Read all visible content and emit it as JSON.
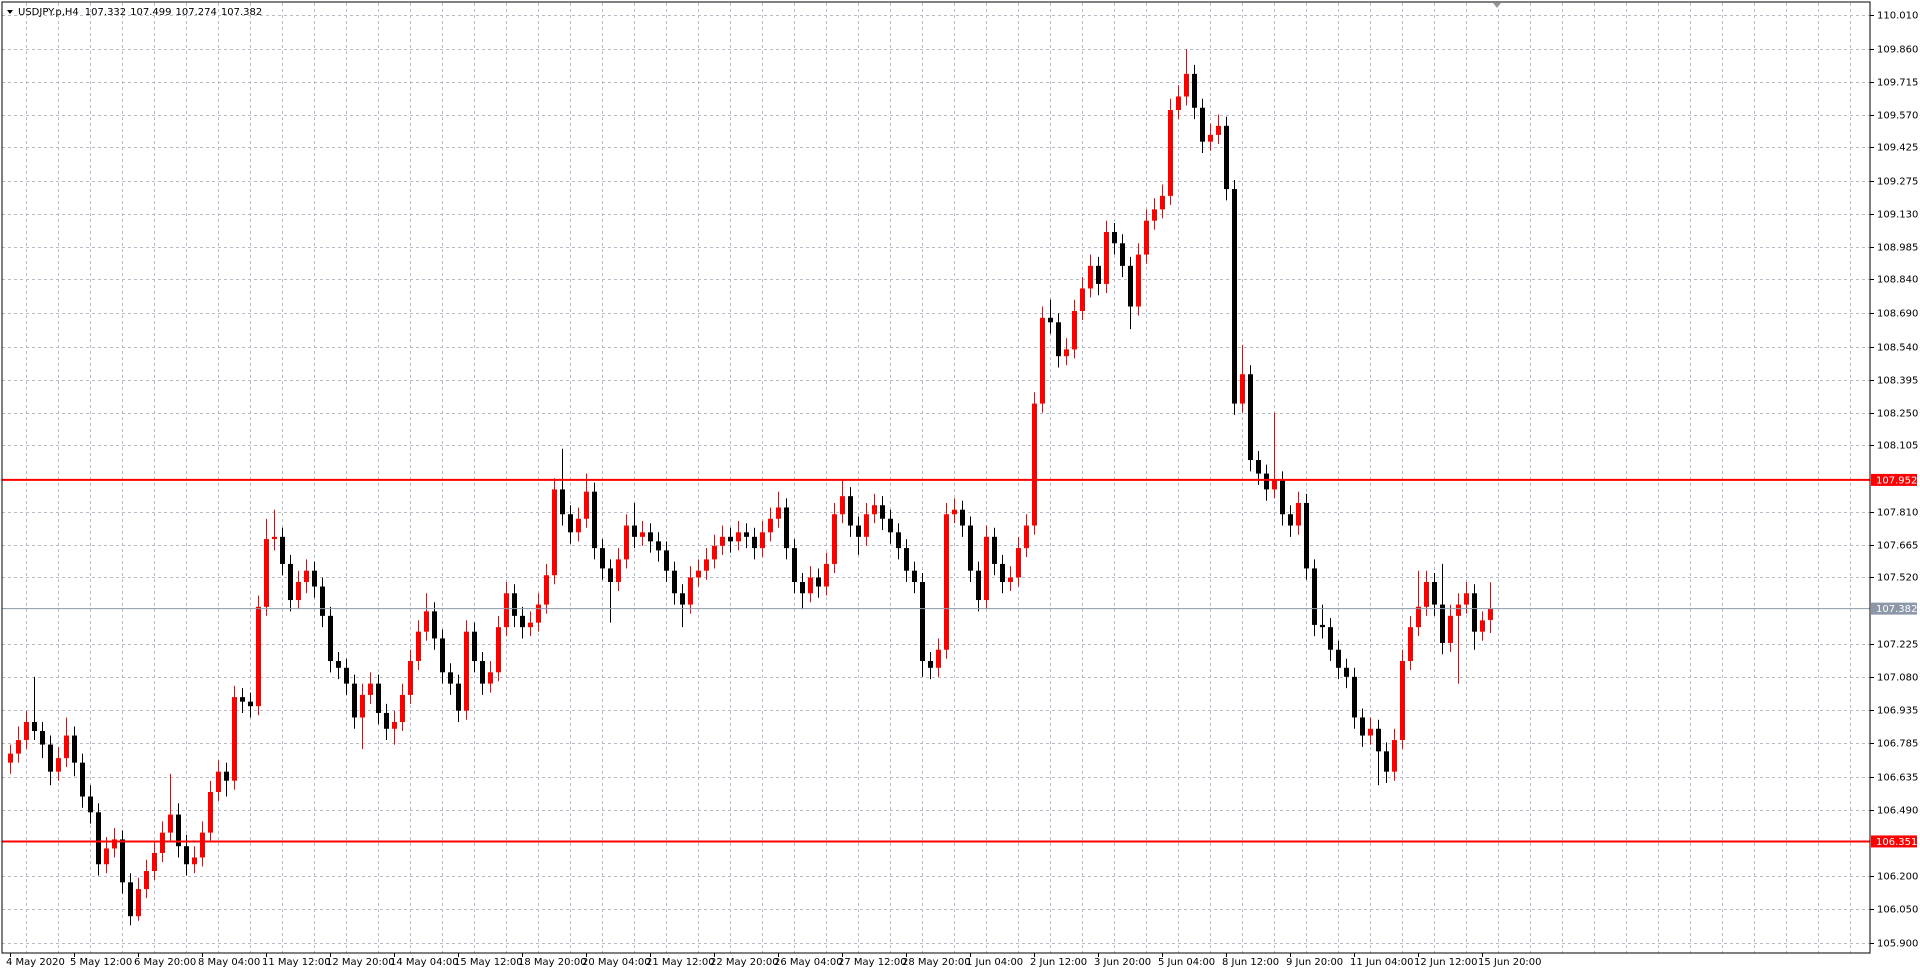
{
  "chart_data": {
    "type": "candlestick",
    "title": "USDJPY.p,H4",
    "header_values": [
      107.332,
      107.499,
      107.274,
      107.382
    ],
    "up_color": "#ff0000",
    "down_color": "#000000",
    "grid": true,
    "ylim": [
      105.857,
      110.064
    ],
    "yticks": [
      {
        "value": 110.01,
        "label": "110.010"
      },
      {
        "value": 109.86,
        "label": "109.860"
      },
      109.715,
      {
        "value": 109.57,
        "label": "109.570"
      },
      109.425,
      109.275,
      {
        "value": 109.13,
        "label": "109.130"
      },
      108.985,
      {
        "value": 108.84,
        "label": "108.840"
      },
      {
        "value": 108.69,
        "label": "108.690"
      },
      {
        "value": 108.54,
        "label": "108.540"
      },
      108.395,
      {
        "value": 108.25,
        "label": "108.250"
      },
      108.105,
      {
        "value": 107.81,
        "label": "107.810"
      },
      107.665,
      {
        "value": 107.52,
        "label": "107.520"
      },
      107.225,
      {
        "value": 107.08,
        "label": "107.080"
      },
      106.935,
      106.785,
      106.635,
      {
        "value": 106.49,
        "label": "106.490"
      },
      {
        "value": 106.2,
        "label": "106.200"
      },
      {
        "value": 106.05,
        "label": "106.050"
      },
      {
        "value": 105.9,
        "label": "105.900"
      }
    ],
    "hlines": [
      {
        "value": 107.952,
        "color": "#ff0000"
      },
      {
        "value": 106.351,
        "color": "#ff0000"
      }
    ],
    "bid": {
      "value": 107.382,
      "color": "#8c98aa"
    },
    "categories": [
      "4 May 2020",
      null,
      null,
      null,
      null,
      null,
      null,
      null,
      "5 May 12:00",
      null,
      null,
      null,
      null,
      null,
      null,
      null,
      "6 May 20:00",
      null,
      null,
      null,
      null,
      null,
      null,
      null,
      "8 May 04:00",
      null,
      null,
      null,
      null,
      null,
      null,
      null,
      "11 May 12:00",
      null,
      null,
      null,
      null,
      null,
      null,
      null,
      "12 May 20:00",
      null,
      null,
      null,
      null,
      null,
      null,
      null,
      "14 May 04:00",
      null,
      null,
      null,
      null,
      null,
      null,
      null,
      "15 May 12:00",
      null,
      null,
      null,
      null,
      null,
      null,
      null,
      "18 May 20:00",
      null,
      null,
      null,
      null,
      null,
      null,
      null,
      "20 May 04:00",
      null,
      null,
      null,
      null,
      null,
      null,
      null,
      "21 May 12:00",
      null,
      null,
      null,
      null,
      null,
      null,
      null,
      "22 May 20:00",
      null,
      null,
      null,
      null,
      null,
      null,
      null,
      "26 May 04:00",
      null,
      null,
      null,
      null,
      null,
      null,
      null,
      "27 May 12:00",
      null,
      null,
      null,
      null,
      null,
      null,
      null,
      "28 May 20:00",
      null,
      null,
      null,
      null,
      null,
      null,
      null,
      "1 Jun 04:00",
      null,
      null,
      null,
      null,
      null,
      null,
      null,
      "2 Jun 12:00",
      null,
      null,
      null,
      null,
      null,
      null,
      null,
      "3 Jun 20:00",
      null,
      null,
      null,
      null,
      null,
      null,
      null,
      "5 Jun 04:00",
      null,
      null,
      null,
      null,
      null,
      null,
      null,
      "8 Jun 12:00",
      null,
      null,
      null,
      null,
      null,
      null,
      null,
      "9 Jun 20:00",
      null,
      null,
      null,
      null,
      null,
      null,
      null,
      "11 Jun 04:00",
      null,
      null,
      null,
      null,
      null,
      null,
      null,
      "12 Jun 12:00",
      null,
      null,
      null,
      null,
      null,
      null,
      null,
      "15 Jun 20:00",
      null
    ],
    "ohlc": [
      [
        106.7,
        106.78,
        106.65,
        106.74
      ],
      [
        106.74,
        106.86,
        106.7,
        106.8
      ],
      [
        106.8,
        106.93,
        106.76,
        106.88
      ],
      [
        106.88,
        107.08,
        106.8,
        106.84
      ],
      [
        106.84,
        106.88,
        106.72,
        106.78
      ],
      [
        106.78,
        106.82,
        106.6,
        106.66
      ],
      [
        106.66,
        106.77,
        106.62,
        106.72
      ],
      [
        106.72,
        106.9,
        106.68,
        106.82
      ],
      [
        106.82,
        106.86,
        106.64,
        106.7
      ],
      [
        106.7,
        106.74,
        106.5,
        106.55
      ],
      [
        106.55,
        106.6,
        106.43,
        106.48
      ],
      [
        106.48,
        106.52,
        106.2,
        106.25
      ],
      [
        106.25,
        106.37,
        106.21,
        106.32
      ],
      [
        106.32,
        106.41,
        106.28,
        106.36
      ],
      [
        106.36,
        106.4,
        106.12,
        106.17
      ],
      [
        106.17,
        106.21,
        105.98,
        106.02
      ],
      [
        106.02,
        106.19,
        106.0,
        106.14
      ],
      [
        106.14,
        106.27,
        106.1,
        106.22
      ],
      [
        106.22,
        106.35,
        106.18,
        106.3
      ],
      [
        106.3,
        106.44,
        106.26,
        106.39
      ],
      [
        106.39,
        106.65,
        106.35,
        106.47
      ],
      [
        106.47,
        106.52,
        106.28,
        106.33
      ],
      [
        106.33,
        106.38,
        106.2,
        106.25
      ],
      [
        106.25,
        106.33,
        106.21,
        106.28
      ],
      [
        106.28,
        106.44,
        106.24,
        106.39
      ],
      [
        106.39,
        106.62,
        106.35,
        106.57
      ],
      [
        106.57,
        106.71,
        106.53,
        106.66
      ],
      [
        106.66,
        106.7,
        106.55,
        106.62
      ],
      [
        106.62,
        107.04,
        106.58,
        106.99
      ],
      [
        106.99,
        107.03,
        106.92,
        106.97
      ],
      [
        106.97,
        107.01,
        106.9,
        106.95
      ],
      [
        106.95,
        107.44,
        106.91,
        107.39
      ],
      [
        107.39,
        107.78,
        107.35,
        107.69
      ],
      [
        107.69,
        107.82,
        107.64,
        107.7
      ],
      [
        107.7,
        107.74,
        107.53,
        107.58
      ],
      [
        107.58,
        107.62,
        107.37,
        107.42
      ],
      [
        107.42,
        107.55,
        107.38,
        107.5
      ],
      [
        107.5,
        107.6,
        107.45,
        107.55
      ],
      [
        107.55,
        107.59,
        107.43,
        107.48
      ],
      [
        107.48,
        107.52,
        107.3,
        107.35
      ],
      [
        107.35,
        107.39,
        107.1,
        107.15
      ],
      [
        107.15,
        107.19,
        107.07,
        107.12
      ],
      [
        107.12,
        107.16,
        107.0,
        107.05
      ],
      [
        107.05,
        107.09,
        106.85,
        106.9
      ],
      [
        106.9,
        107.05,
        106.76,
        107.0
      ],
      [
        107.0,
        107.1,
        106.96,
        107.05
      ],
      [
        107.05,
        107.09,
        106.87,
        106.92
      ],
      [
        106.92,
        106.96,
        106.8,
        106.85
      ],
      [
        106.85,
        106.93,
        106.78,
        106.88
      ],
      [
        106.88,
        107.05,
        106.84,
        107.0
      ],
      [
        107.0,
        107.2,
        106.96,
        107.15
      ],
      [
        107.15,
        107.33,
        107.11,
        107.28
      ],
      [
        107.28,
        107.45,
        107.24,
        107.37
      ],
      [
        107.37,
        107.41,
        107.2,
        107.25
      ],
      [
        107.25,
        107.29,
        107.05,
        107.1
      ],
      [
        107.1,
        107.14,
        107.0,
        107.05
      ],
      [
        107.05,
        107.09,
        106.88,
        106.93
      ],
      [
        106.93,
        107.33,
        106.89,
        107.28
      ],
      [
        107.28,
        107.32,
        107.1,
        107.15
      ],
      [
        107.15,
        107.19,
        107.0,
        107.05
      ],
      [
        107.05,
        107.15,
        107.01,
        107.1
      ],
      [
        107.1,
        107.35,
        107.06,
        107.3
      ],
      [
        107.3,
        107.5,
        107.26,
        107.45
      ],
      [
        107.45,
        107.49,
        107.3,
        107.35
      ],
      [
        107.35,
        107.39,
        107.25,
        107.3
      ],
      [
        107.3,
        107.37,
        107.26,
        107.32
      ],
      [
        107.32,
        107.45,
        107.28,
        107.4
      ],
      [
        107.4,
        107.58,
        107.36,
        107.53
      ],
      [
        107.53,
        107.96,
        107.49,
        107.91
      ],
      [
        107.91,
        108.09,
        107.75,
        107.8
      ],
      [
        107.8,
        107.84,
        107.67,
        107.72
      ],
      [
        107.72,
        107.83,
        107.68,
        107.78
      ],
      [
        107.78,
        107.98,
        107.74,
        107.9
      ],
      [
        107.9,
        107.94,
        107.6,
        107.65
      ],
      [
        107.65,
        107.69,
        107.51,
        107.56
      ],
      [
        107.56,
        107.6,
        107.32,
        107.5
      ],
      [
        107.5,
        107.65,
        107.46,
        107.6
      ],
      [
        107.6,
        107.8,
        107.56,
        107.75
      ],
      [
        107.75,
        107.85,
        107.65,
        107.7
      ],
      [
        107.7,
        107.77,
        107.66,
        107.72
      ],
      [
        107.72,
        107.76,
        107.63,
        107.68
      ],
      [
        107.68,
        107.72,
        107.59,
        107.64
      ],
      [
        107.64,
        107.68,
        107.5,
        107.55
      ],
      [
        107.55,
        107.59,
        107.4,
        107.45
      ],
      [
        107.45,
        107.49,
        107.3,
        107.4
      ],
      [
        107.4,
        107.57,
        107.36,
        107.52
      ],
      [
        107.52,
        107.6,
        107.48,
        107.55
      ],
      [
        107.55,
        107.65,
        107.51,
        107.6
      ],
      [
        107.6,
        107.71,
        107.56,
        107.66
      ],
      [
        107.66,
        107.75,
        107.62,
        107.7
      ],
      [
        107.7,
        107.74,
        107.63,
        107.68
      ],
      [
        107.68,
        107.77,
        107.64,
        107.72
      ],
      [
        107.72,
        107.76,
        107.65,
        107.7
      ],
      [
        107.7,
        107.74,
        107.6,
        107.65
      ],
      [
        107.65,
        107.77,
        107.61,
        107.72
      ],
      [
        107.72,
        107.83,
        107.68,
        107.78
      ],
      [
        107.78,
        107.9,
        107.74,
        107.83
      ],
      [
        107.83,
        107.87,
        107.6,
        107.65
      ],
      [
        107.65,
        107.69,
        107.45,
        107.5
      ],
      [
        107.5,
        107.54,
        107.38,
        107.45
      ],
      [
        107.45,
        107.57,
        107.41,
        107.52
      ],
      [
        107.52,
        107.56,
        107.43,
        107.48
      ],
      [
        107.48,
        107.63,
        107.44,
        107.58
      ],
      [
        107.58,
        107.85,
        107.54,
        107.8
      ],
      [
        107.8,
        107.95,
        107.76,
        107.88
      ],
      [
        107.88,
        107.92,
        107.7,
        107.75
      ],
      [
        107.75,
        107.79,
        107.62,
        107.7
      ],
      [
        107.7,
        107.85,
        107.66,
        107.8
      ],
      [
        107.8,
        107.89,
        107.76,
        107.84
      ],
      [
        107.84,
        107.88,
        107.73,
        107.78
      ],
      [
        107.78,
        107.82,
        107.67,
        107.72
      ],
      [
        107.72,
        107.76,
        107.6,
        107.65
      ],
      [
        107.65,
        107.69,
        107.5,
        107.55
      ],
      [
        107.55,
        107.59,
        107.45,
        107.5
      ],
      [
        107.5,
        107.54,
        107.08,
        107.15
      ],
      [
        107.15,
        107.19,
        107.07,
        107.12
      ],
      [
        107.12,
        107.25,
        107.08,
        107.2
      ],
      [
        107.2,
        107.85,
        107.16,
        107.8
      ],
      [
        107.8,
        107.87,
        107.76,
        107.82
      ],
      [
        107.82,
        107.86,
        107.7,
        107.75
      ],
      [
        107.75,
        107.79,
        107.5,
        107.55
      ],
      [
        107.55,
        107.59,
        107.37,
        107.42
      ],
      [
        107.42,
        107.75,
        107.38,
        107.7
      ],
      [
        107.7,
        107.74,
        107.53,
        107.58
      ],
      [
        107.58,
        107.62,
        107.45,
        107.5
      ],
      [
        107.5,
        107.57,
        107.46,
        107.52
      ],
      [
        107.52,
        107.7,
        107.48,
        107.65
      ],
      [
        107.65,
        107.8,
        107.61,
        107.75
      ],
      [
        107.75,
        108.34,
        107.71,
        108.29
      ],
      [
        108.29,
        108.72,
        108.25,
        108.67
      ],
      [
        108.67,
        108.75,
        108.6,
        108.65
      ],
      [
        108.65,
        108.69,
        108.45,
        108.5
      ],
      [
        108.5,
        108.58,
        108.46,
        108.53
      ],
      [
        108.53,
        108.75,
        108.49,
        108.7
      ],
      [
        108.7,
        108.85,
        108.66,
        108.8
      ],
      [
        108.8,
        108.95,
        108.76,
        108.9
      ],
      [
        108.9,
        108.94,
        108.77,
        108.82
      ],
      [
        108.82,
        109.1,
        108.78,
        109.05
      ],
      [
        109.05,
        109.09,
        108.95,
        109.0
      ],
      [
        109.0,
        109.04,
        108.85,
        108.9
      ],
      [
        108.9,
        108.94,
        108.62,
        108.72
      ],
      [
        108.72,
        109.0,
        108.68,
        108.95
      ],
      [
        108.95,
        109.15,
        108.91,
        109.1
      ],
      [
        109.1,
        109.2,
        109.06,
        109.15
      ],
      [
        109.15,
        109.26,
        109.11,
        109.21
      ],
      [
        109.21,
        109.64,
        109.17,
        109.59
      ],
      [
        109.59,
        109.7,
        109.55,
        109.65
      ],
      [
        109.65,
        109.86,
        109.61,
        109.75
      ],
      [
        109.75,
        109.79,
        109.55,
        109.6
      ],
      [
        109.6,
        109.64,
        109.4,
        109.45
      ],
      [
        109.45,
        109.53,
        109.41,
        109.48
      ],
      [
        109.48,
        109.57,
        109.44,
        109.52
      ],
      [
        109.52,
        109.56,
        109.19,
        109.24
      ],
      [
        109.24,
        109.28,
        108.24,
        108.29
      ],
      [
        108.29,
        108.55,
        108.25,
        108.42
      ],
      [
        108.42,
        108.46,
        107.99,
        108.04
      ],
      [
        108.04,
        108.08,
        107.93,
        107.98
      ],
      [
        107.98,
        108.02,
        107.86,
        107.91
      ],
      [
        107.91,
        108.25,
        107.87,
        107.95
      ],
      [
        107.95,
        107.99,
        107.75,
        107.8
      ],
      [
        107.8,
        107.84,
        107.7,
        107.75
      ],
      [
        107.75,
        107.9,
        107.71,
        107.85
      ],
      [
        107.85,
        107.89,
        107.51,
        107.56
      ],
      [
        107.56,
        107.6,
        107.26,
        107.31
      ],
      [
        107.31,
        107.4,
        107.25,
        107.3
      ],
      [
        107.3,
        107.34,
        107.15,
        107.2
      ],
      [
        107.2,
        107.24,
        107.07,
        107.12
      ],
      [
        107.12,
        107.16,
        107.03,
        107.08
      ],
      [
        107.08,
        107.12,
        106.85,
        106.9
      ],
      [
        106.9,
        106.94,
        106.77,
        106.82
      ],
      [
        106.82,
        106.9,
        106.78,
        106.85
      ],
      [
        106.85,
        106.89,
        106.6,
        106.75
      ],
      [
        106.75,
        106.79,
        106.61,
        106.66
      ],
      [
        106.66,
        106.85,
        106.62,
        106.8
      ],
      [
        106.8,
        107.2,
        106.76,
        107.15
      ],
      [
        107.15,
        107.35,
        107.11,
        107.3
      ],
      [
        107.3,
        107.55,
        107.26,
        107.39
      ],
      [
        107.39,
        107.55,
        107.35,
        107.5
      ],
      [
        107.5,
        107.54,
        107.35,
        107.4
      ],
      [
        107.4,
        107.58,
        107.18,
        107.23
      ],
      [
        107.23,
        107.4,
        107.19,
        107.35
      ],
      [
        107.35,
        107.45,
        107.05,
        107.4
      ],
      [
        107.4,
        107.5,
        107.36,
        107.45
      ],
      [
        107.45,
        107.49,
        107.2,
        107.28
      ],
      [
        107.28,
        107.37,
        107.24,
        107.33
      ],
      [
        107.332,
        107.499,
        107.274,
        107.382
      ]
    ]
  }
}
